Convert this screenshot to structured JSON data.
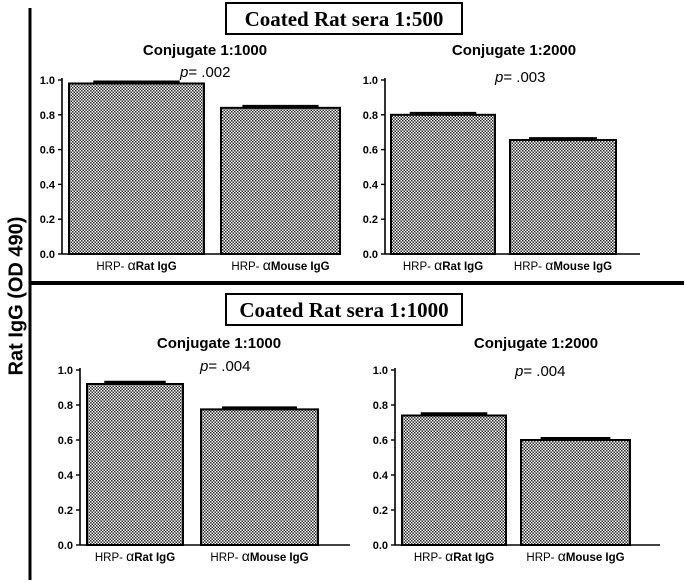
{
  "figure": {
    "y_axis_label": "Rat IgG (OD 490)",
    "sections": [
      {
        "title": "Coated Rat sera 1:500"
      },
      {
        "title": "Coated Rat sera 1:1000"
      }
    ]
  },
  "chart_data": [
    {
      "type": "bar",
      "section": "Coated Rat sera 1:500",
      "title": "Conjugate 1:1000",
      "annotation": {
        "p_label": "p",
        "p_value": "= .002"
      },
      "categories": [
        {
          "prefix": "HRP- ",
          "greek": "α",
          "name": "Rat IgG"
        },
        {
          "prefix": "HRP- ",
          "greek": "α",
          "name": "Mouse IgG"
        }
      ],
      "values": [
        0.98,
        0.84
      ],
      "errors": [
        0.01,
        0.01
      ],
      "ylim": [
        0,
        1.0
      ],
      "yticks": [
        "0.0",
        "0.2",
        "0.4",
        "0.6",
        "0.8",
        "1.0"
      ],
      "ylabel": "Rat IgG (OD 490)",
      "xlabel": ""
    },
    {
      "type": "bar",
      "section": "Coated Rat sera 1:500",
      "title": "Conjugate 1:2000",
      "annotation": {
        "p_label": "p",
        "p_value": "= .003"
      },
      "categories": [
        {
          "prefix": "HRP- ",
          "greek": "α",
          "name": "Rat IgG"
        },
        {
          "prefix": "HRP- ",
          "greek": "α",
          "name": "Mouse IgG"
        }
      ],
      "values": [
        0.8,
        0.655
      ],
      "errors": [
        0.01,
        0.01
      ],
      "ylim": [
        0,
        1.0
      ],
      "yticks": [
        "0.0",
        "0.2",
        "0.4",
        "0.6",
        "0.8",
        "1.0"
      ],
      "ylabel": "Rat IgG (OD 490)",
      "xlabel": ""
    },
    {
      "type": "bar",
      "section": "Coated Rat sera 1:1000",
      "title": "Conjugate 1:1000",
      "annotation": {
        "p_label": "p",
        "p_value": "= .004"
      },
      "categories": [
        {
          "prefix": "HRP- ",
          "greek": "α",
          "name": "Rat IgG"
        },
        {
          "prefix": "HRP- ",
          "greek": "α",
          "name": "Mouse IgG"
        }
      ],
      "values": [
        0.92,
        0.775
      ],
      "errors": [
        0.012,
        0.01
      ],
      "ylim": [
        0,
        1.0
      ],
      "yticks": [
        "0.0",
        "0.2",
        "0.4",
        "0.6",
        "0.8",
        "1.0"
      ],
      "ylabel": "Rat IgG (OD 490)",
      "xlabel": ""
    },
    {
      "type": "bar",
      "section": "Coated Rat sera 1:1000",
      "title": "Conjugate 1:2000",
      "annotation": {
        "p_label": "p",
        "p_value": "= .004"
      },
      "categories": [
        {
          "prefix": "HRP- ",
          "greek": "α",
          "name": "Rat IgG"
        },
        {
          "prefix": "HRP- ",
          "greek": "α",
          "name": "Mouse IgG"
        }
      ],
      "values": [
        0.74,
        0.6
      ],
      "errors": [
        0.012,
        0.01
      ],
      "ylim": [
        0,
        1.0
      ],
      "yticks": [
        "0.0",
        "0.2",
        "0.4",
        "0.6",
        "0.8",
        "1.0"
      ],
      "ylabel": "Rat IgG (OD 490)",
      "xlabel": ""
    }
  ]
}
